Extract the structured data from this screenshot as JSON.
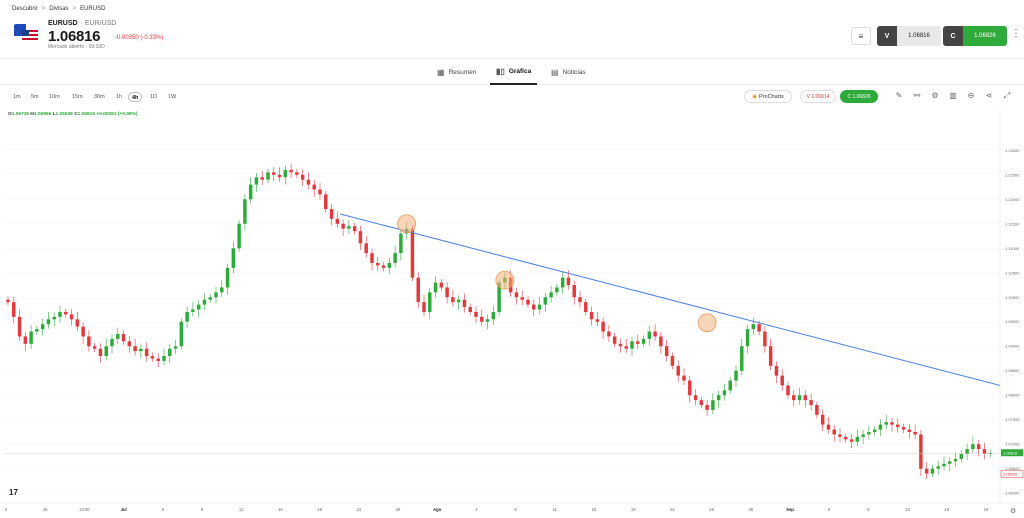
{
  "breadcrumb": [
    "Descubrir",
    "Divisas",
    "EURUSD"
  ],
  "instrument": {
    "symbol": "EURUSD",
    "description": "· EUR/USD",
    "price": "1.06816",
    "change": "-0.00350 (-0.33%)",
    "market_status": "Mercado abierto · 09:10D"
  },
  "trade": {
    "sell_label": "V",
    "sell_price": "1.06816",
    "buy_label": "C",
    "buy_price": "1.06826"
  },
  "tabs": [
    {
      "label": "Resumen",
      "icon": "grid-icon"
    },
    {
      "label": "Gráfica",
      "icon": "candles-icon"
    },
    {
      "label": "Noticias",
      "icon": "news-icon"
    }
  ],
  "timeframes": [
    "1m",
    "5m",
    "10m",
    "15m",
    "30m",
    "1h",
    "4h",
    "1D",
    "1W"
  ],
  "active_timeframe": "4h",
  "procharts_label": "ProCharts",
  "pill_sell": "V 1.06814",
  "pill_buy": "C 1.06826",
  "ohlc": {
    "o_label": "O",
    "o": "1.06735",
    "h_label": "H",
    "h": "1.06866",
    "l_label": "L",
    "l": "1.06638",
    "c_label": "C",
    "c": "1.06816",
    "chg": "+0.00081 (+0.08%)"
  },
  "colors": {
    "up": "#2eaa3b",
    "down": "#e0393e",
    "trendline": "#4a7fe0",
    "marker": "#f5b07a"
  },
  "chart_data": {
    "type": "candlestick",
    "y_ticks": [
      "1.13000",
      "1.12500",
      "1.12000",
      "1.11500",
      "1.11000",
      "1.10500",
      "1.10000",
      "1.09500",
      "1.09000",
      "1.08500",
      "1.08000",
      "1.07500",
      "1.07000",
      "1.06500",
      "1.06000"
    ],
    "ylim": [
      1.058,
      1.137
    ],
    "x_ticks": [
      "2",
      "26",
      "13:00",
      "Jul",
      "5",
      "9",
      "12",
      "16",
      "19",
      "23",
      "26",
      "Ago",
      "4",
      "8",
      "11",
      "15",
      "18",
      "22",
      "25",
      "30",
      "Sep",
      "5",
      "8",
      "12",
      "15",
      "19"
    ],
    "current_price_label": "1.06816",
    "current_bid_label": "1.06826",
    "closes": [
      1.099,
      1.096,
      1.092,
      1.0905,
      1.093,
      1.0935,
      1.0945,
      1.0955,
      1.096,
      1.097,
      1.0965,
      1.0955,
      1.094,
      1.092,
      1.09,
      1.0895,
      1.088,
      1.09,
      1.0915,
      1.0925,
      1.091,
      1.09,
      1.089,
      1.0895,
      1.088,
      1.0875,
      1.087,
      1.088,
      1.0895,
      1.09,
      1.095,
      1.097,
      1.0975,
      1.0985,
      1.0995,
      1.1,
      1.101,
      1.102,
      1.106,
      1.11,
      1.115,
      1.12,
      1.123,
      1.1245,
      1.124,
      1.1255,
      1.125,
      1.1245,
      1.126,
      1.1255,
      1.125,
      1.124,
      1.123,
      1.122,
      1.121,
      1.118,
      1.116,
      1.115,
      1.114,
      1.1145,
      1.1135,
      1.111,
      1.109,
      1.107,
      1.1065,
      1.106,
      1.107,
      1.109,
      1.113,
      1.114,
      1.104,
      1.099,
      1.097,
      1.101,
      1.103,
      1.102,
      1.1,
      1.099,
      1.0995,
      1.098,
      1.097,
      1.096,
      1.095,
      1.0955,
      1.097,
      1.103,
      1.104,
      1.101,
      1.1,
      1.0995,
      1.0985,
      1.0975,
      1.0985,
      1.1,
      1.101,
      1.102,
      1.104,
      1.1025,
      1.1,
      1.099,
      1.097,
      1.0955,
      1.095,
      1.093,
      1.092,
      1.0905,
      1.09,
      1.0895,
      1.091,
      1.0905,
      1.0915,
      1.093,
      1.092,
      1.09,
      1.088,
      1.086,
      1.084,
      1.083,
      1.08,
      1.079,
      1.078,
      1.077,
      1.079,
      1.08,
      1.081,
      1.083,
      1.085,
      1.09,
      1.0935,
      1.0945,
      1.093,
      1.09,
      1.086,
      1.084,
      1.082,
      1.08,
      1.079,
      1.08,
      1.079,
      1.078,
      1.076,
      1.074,
      1.073,
      1.072,
      1.0715,
      1.071,
      1.0705,
      1.0715,
      1.072,
      1.0725,
      1.073,
      1.074,
      1.0745,
      1.074,
      1.0735,
      1.073,
      1.0725,
      1.072,
      1.065,
      1.064,
      1.065,
      1.0655,
      1.066,
      1.0665,
      1.067,
      1.068,
      1.069,
      1.07,
      1.069,
      1.068,
      1.0682
    ]
  }
}
